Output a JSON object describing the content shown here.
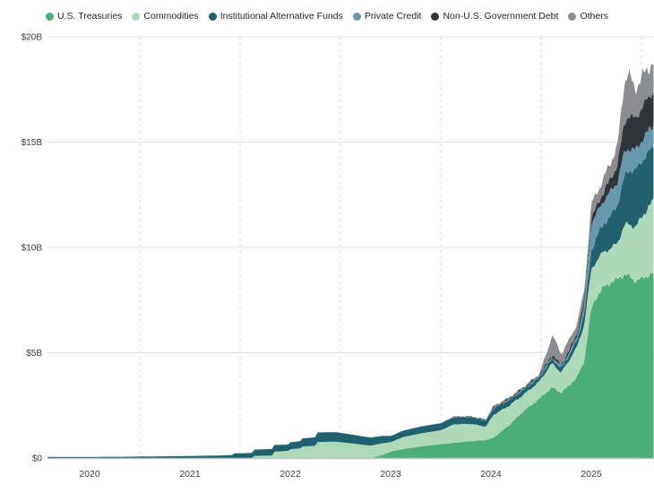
{
  "chart_data": {
    "type": "area",
    "stacked": true,
    "unit": "billions USD",
    "grid": "on",
    "legend_position": "top-center",
    "y_axis": {
      "min": 0,
      "max": 20,
      "ticks": [
        {
          "value": 0,
          "label": "$0"
        },
        {
          "value": 5,
          "label": "$5B"
        },
        {
          "value": 10,
          "label": "$10B"
        },
        {
          "value": 15,
          "label": "$15B"
        },
        {
          "value": 20,
          "label": "$20B"
        }
      ]
    },
    "x_axis": {
      "labels": [
        "2020",
        "2021",
        "2022",
        "2023",
        "2024",
        "2025"
      ],
      "years": [
        2020,
        2021,
        2022,
        2023,
        2024,
        2025
      ],
      "range_years": [
        2019.55,
        2025.63
      ]
    },
    "legend": [
      {
        "name": "U.S. Treasuries",
        "color": "#4bae78"
      },
      {
        "name": "Commodities",
        "color": "#aed8ba"
      },
      {
        "name": "Institutional Alternative Funds",
        "color": "#21616e"
      },
      {
        "name": "Private Credit",
        "color": "#6699ac"
      },
      {
        "name": "Non-U.S. Government Debt",
        "color": "#30353a"
      },
      {
        "name": "Others",
        "color": "#8b8d90"
      }
    ],
    "t": [
      2019.55,
      2020.3,
      2020.9,
      2021.3,
      2021.42,
      2021.44,
      2021.62,
      2021.64,
      2021.82,
      2021.84,
      2021.98,
      2022.0,
      2022.1,
      2022.12,
      2022.25,
      2022.27,
      2022.45,
      2022.6,
      2022.8,
      2022.92,
      2023.0,
      2023.12,
      2023.3,
      2023.5,
      2023.63,
      2023.8,
      2023.95,
      2024.02,
      2024.18,
      2024.33,
      2024.48,
      2024.56,
      2024.61,
      2024.7,
      2024.78,
      2024.86,
      2024.93,
      2025.0,
      2025.06,
      2025.12,
      2025.19,
      2025.26,
      2025.33,
      2025.37,
      2025.44,
      2025.52,
      2025.58,
      2025.63
    ],
    "series": [
      {
        "name": "U.S. Treasuries",
        "values": [
          0,
          0,
          0,
          0,
          0,
          0,
          0,
          0,
          0,
          0,
          0,
          0,
          0,
          0,
          0,
          0,
          0,
          0,
          0,
          0.15,
          0.3,
          0.42,
          0.55,
          0.66,
          0.72,
          0.8,
          0.86,
          0.95,
          1.55,
          2.25,
          2.8,
          3.15,
          3.35,
          3.1,
          3.45,
          3.85,
          4.6,
          7.1,
          7.7,
          8.1,
          8.3,
          8.5,
          8.7,
          8.65,
          8.4,
          8.55,
          8.7,
          8.8
        ]
      },
      {
        "name": "Commodities",
        "values": [
          0,
          0,
          0,
          0,
          0,
          0,
          0,
          0.1,
          0.12,
          0.3,
          0.34,
          0.42,
          0.46,
          0.55,
          0.58,
          0.76,
          0.78,
          0.7,
          0.59,
          0.55,
          0.45,
          0.57,
          0.62,
          0.66,
          0.88,
          0.82,
          0.63,
          1.08,
          0.93,
          0.78,
          0.82,
          1.02,
          1.15,
          0.95,
          1.2,
          1.45,
          1.75,
          1.85,
          1.72,
          1.68,
          1.64,
          1.7,
          2.35,
          2.45,
          2.58,
          3.0,
          3.3,
          3.45
        ]
      },
      {
        "name": "Institutional Alternative Funds",
        "values": [
          0.05,
          0.06,
          0.09,
          0.12,
          0.14,
          0.22,
          0.24,
          0.3,
          0.31,
          0.32,
          0.3,
          0.33,
          0.34,
          0.38,
          0.4,
          0.45,
          0.45,
          0.42,
          0.38,
          0.35,
          0.29,
          0.3,
          0.32,
          0.32,
          0.34,
          0.32,
          0.27,
          0.3,
          0.26,
          0.22,
          0.2,
          0.21,
          0.22,
          0.2,
          0.24,
          0.32,
          0.5,
          0.9,
          1.15,
          1.32,
          1.52,
          1.8,
          2.3,
          2.55,
          2.68,
          2.65,
          2.58,
          2.55
        ]
      },
      {
        "name": "Private Credit",
        "values": [
          0,
          0,
          0,
          0,
          0,
          0,
          0,
          0,
          0,
          0,
          0,
          0,
          0.01,
          0.01,
          0.01,
          0.01,
          0.01,
          0.01,
          0.01,
          0.01,
          0.01,
          0.01,
          0.02,
          0.02,
          0.02,
          0.02,
          0.02,
          0.04,
          0.05,
          0.06,
          0.06,
          0.08,
          0.1,
          0.09,
          0.12,
          0.18,
          0.4,
          1.25,
          1.12,
          1.1,
          1.18,
          1.1,
          1.18,
          1.05,
          0.95,
          1.0,
          1.02,
          1.05
        ]
      },
      {
        "name": "Non-U.S. Government Debt",
        "values": [
          0,
          0,
          0,
          0,
          0,
          0,
          0,
          0,
          0,
          0,
          0,
          0,
          0,
          0,
          0,
          0,
          0,
          0,
          0,
          0,
          0,
          0,
          0,
          0,
          0.01,
          0.01,
          0.02,
          0.03,
          0.03,
          0.04,
          0.04,
          0.08,
          0.1,
          0.08,
          0.12,
          0.16,
          0.25,
          0.25,
          0.32,
          0.42,
          0.6,
          0.8,
          1.4,
          1.55,
          1.5,
          1.55,
          1.58,
          1.6
        ]
      },
      {
        "name": "Others",
        "values": [
          0,
          0,
          0,
          0,
          0,
          0,
          0,
          0,
          0,
          0,
          0,
          0,
          0,
          0,
          0,
          0,
          0,
          0,
          0,
          0,
          0,
          0,
          0,
          0,
          0.01,
          0.02,
          0.03,
          0.06,
          0.06,
          0.06,
          0.06,
          0.5,
          0.95,
          0.52,
          0.48,
          0.44,
          0.45,
          0.7,
          0.62,
          0.62,
          0.78,
          0.9,
          1.9,
          2.05,
          1.35,
          1.5,
          1.35,
          1.45
        ]
      }
    ],
    "colors": {
      "gridline": "#dfe1e2",
      "gridline_dashed": "#d8dadc",
      "baseline": "#bfc3c5",
      "tick_text": "#3d4043"
    }
  }
}
